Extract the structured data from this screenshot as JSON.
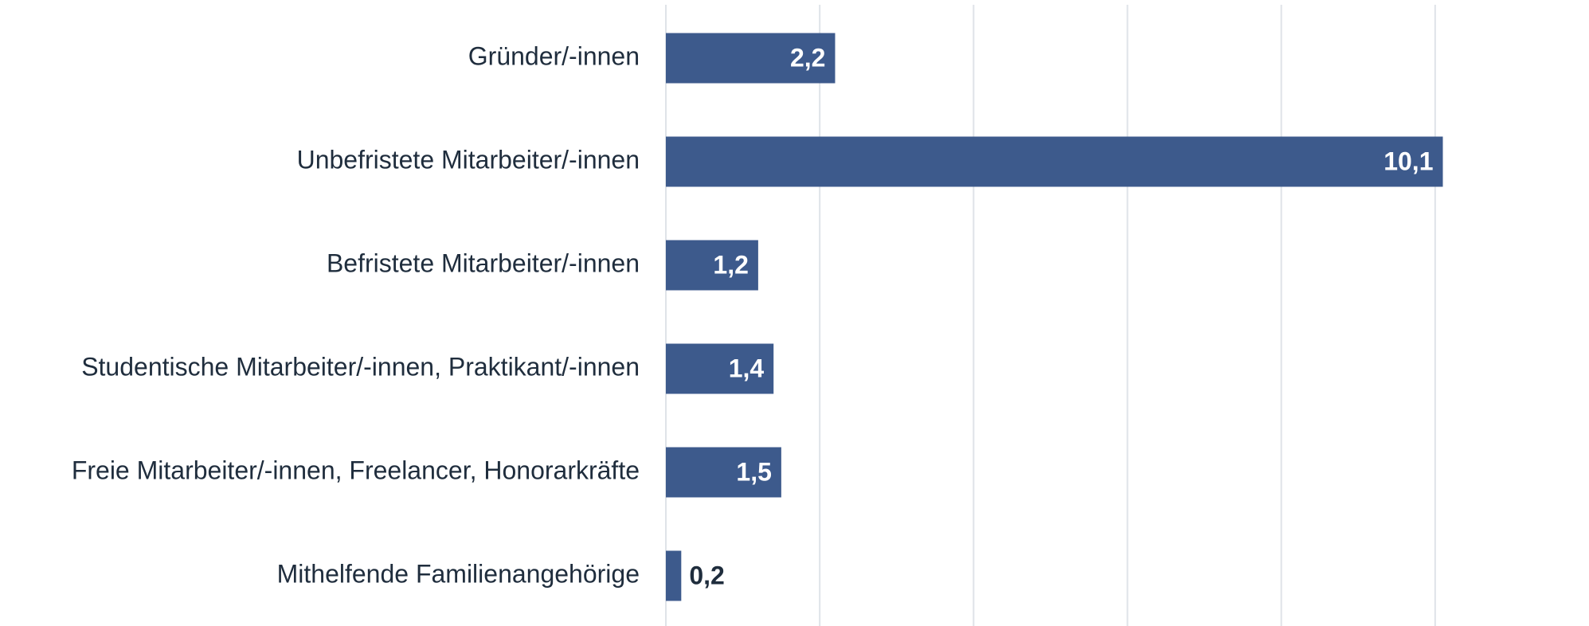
{
  "chart_data": {
    "type": "barh",
    "categories": [
      "Gründer/-innen",
      "Unbefristete Mitarbeiter/-innen",
      "Befristete Mitarbeiter/-innen",
      "Studentische Mitarbeiter/-innen, Praktikant/-innen",
      "Freie Mitarbeiter/-innen, Freelancer, Honorarkräfte",
      "Mithelfende Familienangehörige"
    ],
    "values": [
      2.2,
      10.1,
      1.2,
      1.4,
      1.5,
      0.2
    ],
    "value_labels": [
      "2,2",
      "10,1",
      "1,2",
      "1,4",
      "1,5",
      "0,2"
    ],
    "color": "#3d5a8c",
    "xlim": [
      0,
      12
    ],
    "xticks": [
      0,
      2,
      4,
      6,
      8,
      10
    ],
    "grid": true
  }
}
